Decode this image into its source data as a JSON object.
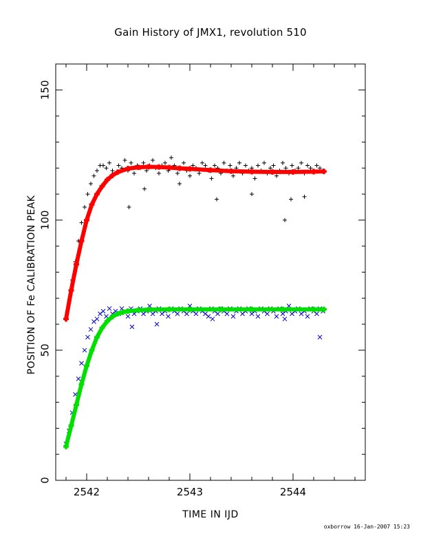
{
  "chart_data": {
    "type": "scatter",
    "title": "Gain History of JMX1, revolution 510",
    "xlabel": "TIME IN IJD",
    "ylabel": "POSITION OF Fe CALIBRATION PEAK",
    "xlim": [
      2541.7,
      2544.7
    ],
    "ylim": [
      0,
      160
    ],
    "xticks": [
      2542,
      2543,
      2544
    ],
    "yticks": [
      0,
      50,
      100,
      150
    ],
    "grid": false,
    "series": [
      {
        "color": "#000000",
        "marker": "+",
        "x": [
          2541.8,
          2541.83,
          2541.86,
          2541.89,
          2541.92,
          2541.95,
          2541.98,
          2542.01,
          2542.04,
          2542.07,
          2542.1,
          2542.13,
          2542.16,
          2542.19,
          2542.22,
          2542.25,
          2542.28,
          2542.31,
          2542.34,
          2542.37,
          2542.4,
          2542.43,
          2542.46,
          2542.49,
          2542.52,
          2542.55,
          2542.58,
          2542.61,
          2542.64,
          2542.67,
          2542.7,
          2542.73,
          2542.76,
          2542.79,
          2542.82,
          2542.85,
          2542.88,
          2542.91,
          2542.94,
          2542.97,
          2543.0,
          2543.03,
          2543.06,
          2543.09,
          2543.12,
          2543.15,
          2543.18,
          2543.21,
          2543.24,
          2543.27,
          2543.3,
          2543.33,
          2543.36,
          2543.39,
          2543.42,
          2543.45,
          2543.48,
          2543.51,
          2543.54,
          2543.57,
          2543.6,
          2543.63,
          2543.66,
          2543.69,
          2543.72,
          2543.75,
          2543.78,
          2543.81,
          2543.84,
          2543.87,
          2543.9,
          2543.93,
          2543.96,
          2543.99,
          2544.02,
          2544.05,
          2544.08,
          2544.11,
          2544.14,
          2544.17,
          2544.2,
          2544.23,
          2544.26,
          2544.29,
          2542.41,
          2542.56,
          2542.9,
          2543.26,
          2543.6,
          2543.92,
          2543.98,
          2544.11
        ],
        "y": [
          62,
          69,
          77,
          84,
          92,
          99,
          105,
          110,
          114,
          117,
          119,
          121,
          121,
          120,
          122,
          119,
          118,
          121,
          120,
          123,
          119,
          122,
          118,
          121,
          120,
          122,
          119,
          121,
          123,
          120,
          118,
          121,
          122,
          119,
          124,
          121,
          118,
          120,
          122,
          119,
          117,
          121,
          120,
          118,
          122,
          121,
          119,
          116,
          121,
          120,
          118,
          122,
          119,
          121,
          117,
          120,
          122,
          118,
          121,
          119,
          120,
          116,
          121,
          119,
          122,
          118,
          120,
          121,
          117,
          119,
          122,
          120,
          118,
          121,
          119,
          120,
          122,
          118,
          121,
          120,
          119,
          121,
          120,
          119,
          105,
          112,
          114,
          108,
          110,
          100,
          108,
          109
        ]
      },
      {
        "color": "#ff0000",
        "marker": "+",
        "x": [
          2541.8,
          2541.85,
          2541.9,
          2541.95,
          2542.0,
          2542.05,
          2542.1,
          2542.15,
          2542.2,
          2542.25,
          2542.3,
          2542.4,
          2542.5,
          2542.6,
          2542.7,
          2542.8,
          2542.9,
          2543.0,
          2543.2,
          2543.4,
          2543.6,
          2543.8,
          2544.0,
          2544.2,
          2544.3
        ],
        "y": [
          62,
          73,
          83,
          92,
          100,
          106,
          110,
          113,
          115.5,
          117.2,
          118.4,
          119.8,
          120.3,
          120.5,
          120.4,
          120.2,
          119.9,
          119.7,
          119.2,
          118.8,
          118.6,
          118.5,
          118.5,
          118.6,
          118.7
        ]
      },
      {
        "color": "#0000cc",
        "marker": "x",
        "x": [
          2541.8,
          2541.83,
          2541.86,
          2541.89,
          2541.92,
          2541.95,
          2541.98,
          2542.01,
          2542.04,
          2542.07,
          2542.1,
          2542.13,
          2542.16,
          2542.19,
          2542.22,
          2542.25,
          2542.28,
          2542.31,
          2542.34,
          2542.37,
          2542.4,
          2542.43,
          2542.46,
          2542.49,
          2542.52,
          2542.55,
          2542.58,
          2542.61,
          2542.64,
          2542.67,
          2542.7,
          2542.73,
          2542.76,
          2542.79,
          2542.82,
          2542.85,
          2542.88,
          2542.91,
          2542.94,
          2542.97,
          2543.0,
          2543.03,
          2543.06,
          2543.09,
          2543.12,
          2543.15,
          2543.18,
          2543.21,
          2543.24,
          2543.27,
          2543.3,
          2543.33,
          2543.36,
          2543.39,
          2543.42,
          2543.45,
          2543.48,
          2543.51,
          2543.54,
          2543.57,
          2543.6,
          2543.63,
          2543.66,
          2543.69,
          2543.72,
          2543.75,
          2543.78,
          2543.81,
          2543.84,
          2543.87,
          2543.9,
          2543.93,
          2543.96,
          2543.99,
          2544.02,
          2544.05,
          2544.08,
          2544.11,
          2544.14,
          2544.17,
          2544.2,
          2544.23,
          2544.26,
          2544.29,
          2542.44,
          2542.68,
          2543.22,
          2543.92,
          2544.26
        ],
        "y": [
          14,
          19,
          26,
          33,
          39,
          45,
          50,
          55,
          58,
          61,
          62,
          64,
          65,
          63,
          66,
          64,
          65,
          64,
          66,
          65,
          63,
          66,
          64,
          65,
          66,
          64,
          65,
          67,
          64,
          65,
          66,
          64,
          65,
          63,
          66,
          65,
          64,
          66,
          65,
          64,
          67,
          65,
          64,
          66,
          65,
          64,
          63,
          66,
          65,
          64,
          66,
          65,
          64,
          66,
          63,
          65,
          66,
          64,
          65,
          66,
          64,
          65,
          63,
          66,
          65,
          64,
          66,
          65,
          63,
          66,
          64,
          65,
          67,
          64,
          65,
          66,
          64,
          65,
          63,
          66,
          65,
          64,
          66,
          65,
          59,
          60,
          62,
          62,
          55
        ]
      },
      {
        "color": "#00e000",
        "marker": "+",
        "x": [
          2541.8,
          2541.85,
          2541.9,
          2541.95,
          2542.0,
          2542.05,
          2542.1,
          2542.15,
          2542.2,
          2542.25,
          2542.3,
          2542.35,
          2542.4,
          2542.5,
          2542.6,
          2542.8,
          2543.0,
          2543.3,
          2543.6,
          2543.9,
          2544.2,
          2544.3
        ],
        "y": [
          13,
          21,
          29,
          37,
          44,
          50,
          55,
          58.6,
          61.2,
          62.9,
          64,
          64.6,
          65,
          65.4,
          65.6,
          65.7,
          65.7,
          65.7,
          65.7,
          65.7,
          65.7,
          65.7
        ]
      }
    ],
    "footer": "oxborrow 16-Jan-2007 15:23"
  }
}
